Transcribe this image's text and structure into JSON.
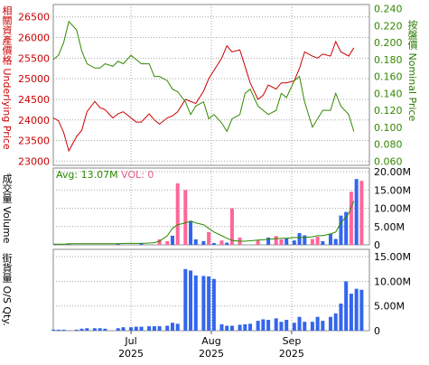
{
  "colors": {
    "price_line": "#cc0000",
    "nominal_line": "#338800",
    "volume_up": "#ff6699",
    "volume_down": "#3366ee",
    "avg_line": "#2a8a00",
    "os_bar": "#3366ee",
    "grid": "#a6a6a6"
  },
  "labels": {
    "underlying_axis": "相關資產價格 Underlying Price",
    "nominal_axis": "按盤價 Nominal Price",
    "volume_axis": "成交量 Volume",
    "os_axis": "街貨量 O/S Qty.",
    "avg_legend": "Avg: 13.07M",
    "vol_legend": "VOL: 0"
  },
  "chart_data": [
    {
      "type": "line",
      "title": "",
      "grid": true,
      "x": [
        "2025-06-01",
        "2025-06-03",
        "2025-06-05",
        "2025-06-07",
        "2025-06-10",
        "2025-06-12",
        "2025-06-14",
        "2025-06-17",
        "2025-06-19",
        "2025-06-21",
        "2025-06-24",
        "2025-06-26",
        "2025-06-28",
        "2025-07-01",
        "2025-07-03",
        "2025-07-05",
        "2025-07-08",
        "2025-07-10",
        "2025-07-12",
        "2025-07-15",
        "2025-07-17",
        "2025-07-19",
        "2025-07-22",
        "2025-07-24",
        "2025-07-26",
        "2025-07-29",
        "2025-07-31",
        "2025-08-02",
        "2025-08-05",
        "2025-08-07",
        "2025-08-09",
        "2025-08-12",
        "2025-08-14",
        "2025-08-16",
        "2025-08-19",
        "2025-08-21",
        "2025-08-23",
        "2025-08-26",
        "2025-08-28",
        "2025-08-30",
        "2025-09-02",
        "2025-09-04",
        "2025-09-06",
        "2025-09-09",
        "2025-09-11",
        "2025-09-13",
        "2025-09-16",
        "2025-09-18",
        "2025-09-20",
        "2025-09-23",
        "2025-09-25"
      ],
      "x_tick_labels": [
        {
          "month": "Jul",
          "year": "2025",
          "date": "2025-07-01"
        },
        {
          "month": "Aug",
          "year": "2025",
          "date": "2025-08-01"
        },
        {
          "month": "Sep",
          "year": "2025",
          "date": "2025-09-01"
        }
      ],
      "series": [
        {
          "name": "相關資產價格 Underlying Price",
          "axis": "left",
          "values": [
            24050,
            23980,
            23700,
            23250,
            23600,
            23750,
            24200,
            24450,
            24300,
            24250,
            24050,
            24150,
            24200,
            24050,
            23950,
            23950,
            24150,
            24000,
            23900,
            24050,
            24100,
            24200,
            24500,
            24450,
            24400,
            24700,
            25000,
            25200,
            25500,
            25800,
            25650,
            25700,
            25300,
            24900,
            24500,
            24600,
            24850,
            24750,
            24900,
            24900,
            24950,
            25250,
            25650,
            25550,
            25500,
            25600,
            25550,
            25900,
            25650,
            25550,
            25750
          ]
        },
        {
          "name": "按盤價 Nominal Price",
          "axis": "right",
          "values": [
            0.18,
            0.185,
            0.2,
            0.225,
            0.215,
            0.19,
            0.175,
            0.17,
            0.17,
            0.175,
            0.172,
            0.178,
            0.175,
            0.185,
            0.18,
            0.175,
            0.175,
            0.16,
            0.16,
            0.155,
            0.145,
            0.142,
            0.13,
            0.115,
            0.125,
            0.13,
            0.11,
            0.115,
            0.105,
            0.095,
            0.11,
            0.115,
            0.14,
            0.145,
            0.125,
            0.12,
            0.115,
            0.12,
            0.14,
            0.135,
            0.155,
            0.16,
            0.13,
            0.1,
            0.11,
            0.12,
            0.12,
            0.14,
            0.125,
            0.115,
            0.095
          ]
        }
      ],
      "y_left": {
        "ticks": [
          23000,
          23500,
          24000,
          24500,
          25000,
          25500,
          26000,
          26500
        ],
        "range": [
          22900,
          26800
        ]
      },
      "y_right": {
        "ticks": [
          "0.060",
          "0.080",
          "0.100",
          "0.120",
          "0.140",
          "0.160",
          "0.180",
          "0.200",
          "0.220",
          "0.240"
        ],
        "range": [
          0.055,
          0.245
        ]
      }
    },
    {
      "type": "bar",
      "title": "",
      "series": [
        {
          "color_role": "up",
          "values": [
            0.1,
            0.1,
            0.1,
            0.1,
            0.1,
            0.1,
            0.1,
            0.1,
            0.1,
            0.1,
            0.1,
            0.1,
            0.1,
            0.1,
            0.1,
            0.1,
            0.1,
            0.1,
            0.1,
            0.1,
            0.1,
            0.1,
            0.1,
            0.3,
            0.1,
            0.1,
            0.1,
            0.1,
            0.1,
            0.1,
            0.1,
            0.1,
            0.1,
            0.1,
            0.1,
            0.1,
            0.1,
            0.1,
            0.1,
            0.1,
            0.1,
            0.1,
            0.1,
            0.1,
            0.1,
            0.1,
            0.1,
            0.1,
            0.1,
            0.1,
            0.1
          ]
        },
        {
          "color_role": "down",
          "values": [
            0.1,
            0.1,
            0.1,
            0.1,
            0.1,
            0.1,
            0.1,
            0.1,
            0.1,
            0.1,
            0.1,
            0.1,
            0.1,
            0.1,
            0.1,
            0.1,
            0.1,
            0.1,
            0.1,
            0.1,
            0.1,
            0.1,
            0.1,
            0.1,
            0.1,
            0.1,
            0.1,
            0.1,
            0.1,
            0.1,
            0.1,
            0.1,
            0.1,
            0.1,
            0.1,
            0.1,
            0.1,
            0.1,
            0.1,
            0.1,
            0.1,
            0.1,
            0.1,
            0.1,
            0.1,
            0.1,
            0.1,
            0.1,
            0.1,
            0.1,
            0.1
          ]
        }
      ],
      "bars": [
        {
          "x": "2025-06-07",
          "v": 0.2,
          "c": "down"
        },
        {
          "x": "2025-06-26",
          "v": 0.3,
          "c": "down"
        },
        {
          "x": "2025-07-05",
          "v": 0.4,
          "c": "down"
        },
        {
          "x": "2025-07-12",
          "v": 1.5,
          "c": "up"
        },
        {
          "x": "2025-07-15",
          "v": 1.0,
          "c": "up"
        },
        {
          "x": "2025-07-17",
          "v": 2.5,
          "c": "down"
        },
        {
          "x": "2025-07-19",
          "v": 16.8,
          "c": "up"
        },
        {
          "x": "2025-07-22",
          "v": 15.0,
          "c": "up"
        },
        {
          "x": "2025-07-24",
          "v": 6.5,
          "c": "down"
        },
        {
          "x": "2025-07-26",
          "v": 1.5,
          "c": "down"
        },
        {
          "x": "2025-07-29",
          "v": 1.0,
          "c": "down"
        },
        {
          "x": "2025-07-31",
          "v": 3.5,
          "c": "up"
        },
        {
          "x": "2025-08-02",
          "v": 0.5,
          "c": "down"
        },
        {
          "x": "2025-08-05",
          "v": 1.2,
          "c": "up"
        },
        {
          "x": "2025-08-07",
          "v": 0.6,
          "c": "down"
        },
        {
          "x": "2025-08-09",
          "v": 10.0,
          "c": "up"
        },
        {
          "x": "2025-08-12",
          "v": 2.0,
          "c": "up"
        },
        {
          "x": "2025-08-19",
          "v": 1.2,
          "c": "up"
        },
        {
          "x": "2025-08-23",
          "v": 2.0,
          "c": "down"
        },
        {
          "x": "2025-08-26",
          "v": 2.4,
          "c": "up"
        },
        {
          "x": "2025-08-28",
          "v": 1.5,
          "c": "up"
        },
        {
          "x": "2025-08-30",
          "v": 1.8,
          "c": "down"
        },
        {
          "x": "2025-09-02",
          "v": 1.2,
          "c": "down"
        },
        {
          "x": "2025-09-04",
          "v": 3.2,
          "c": "down"
        },
        {
          "x": "2025-09-06",
          "v": 2.6,
          "c": "down"
        },
        {
          "x": "2025-09-09",
          "v": 1.6,
          "c": "up"
        },
        {
          "x": "2025-09-11",
          "v": 2.2,
          "c": "up"
        },
        {
          "x": "2025-09-13",
          "v": 1.0,
          "c": "down"
        },
        {
          "x": "2025-09-16",
          "v": 3.0,
          "c": "down"
        },
        {
          "x": "2025-09-18",
          "v": 1.6,
          "c": "down"
        },
        {
          "x": "2025-09-20",
          "v": 8.0,
          "c": "down"
        },
        {
          "x": "2025-09-22",
          "v": 9.0,
          "c": "down"
        },
        {
          "x": "2025-09-24",
          "v": 14.5,
          "c": "up"
        },
        {
          "x": "2025-09-26",
          "v": 18.0,
          "c": "down"
        },
        {
          "x": "2025-09-28",
          "v": 17.5,
          "c": "up"
        }
      ],
      "avg_line": [
        0.2,
        0.2,
        0.2,
        0.3,
        0.3,
        0.3,
        0.3,
        0.3,
        0.3,
        0.3,
        0.3,
        0.3,
        0.4,
        0.4,
        0.4,
        0.4,
        0.5,
        0.6,
        1.0,
        2.5,
        4.5,
        5.5,
        6.0,
        6.5,
        6.0,
        5.5,
        4.5,
        3.5,
        2.5,
        1.8,
        1.2,
        1.0,
        1.0,
        1.1,
        1.3,
        1.4,
        1.5,
        1.7,
        1.8,
        1.8,
        2.0,
        2.0,
        2.0,
        2.2,
        2.5,
        2.5,
        3.0,
        3.5,
        6.0,
        8.5,
        12.0
      ],
      "y": {
        "ticks": [
          "0",
          "5.00M",
          "10.00M",
          "15.00M",
          "20.00M"
        ],
        "range": [
          0,
          21
        ]
      }
    },
    {
      "type": "bar",
      "title": "",
      "bars": [
        {
          "x": "2025-06-01",
          "v": 0.2
        },
        {
          "x": "2025-06-03",
          "v": 0.2
        },
        {
          "x": "2025-06-05",
          "v": 0.2
        },
        {
          "x": "2025-06-10",
          "v": 0.2
        },
        {
          "x": "2025-06-12",
          "v": 0.4
        },
        {
          "x": "2025-06-14",
          "v": 0.5
        },
        {
          "x": "2025-06-17",
          "v": 0.5
        },
        {
          "x": "2025-06-19",
          "v": 0.5
        },
        {
          "x": "2025-06-21",
          "v": 0.4
        },
        {
          "x": "2025-06-26",
          "v": 0.5
        },
        {
          "x": "2025-06-28",
          "v": 0.7
        },
        {
          "x": "2025-07-01",
          "v": 0.7
        },
        {
          "x": "2025-07-03",
          "v": 0.8
        },
        {
          "x": "2025-07-05",
          "v": 0.8
        },
        {
          "x": "2025-07-08",
          "v": 0.9
        },
        {
          "x": "2025-07-10",
          "v": 0.9
        },
        {
          "x": "2025-07-12",
          "v": 0.9
        },
        {
          "x": "2025-07-15",
          "v": 1.0
        },
        {
          "x": "2025-07-17",
          "v": 1.6
        },
        {
          "x": "2025-07-19",
          "v": 1.4
        },
        {
          "x": "2025-07-22",
          "v": 12.5
        },
        {
          "x": "2025-07-24",
          "v": 12.2
        },
        {
          "x": "2025-07-26",
          "v": 11.2
        },
        {
          "x": "2025-07-29",
          "v": 11.1
        },
        {
          "x": "2025-07-31",
          "v": 11.0
        },
        {
          "x": "2025-08-02",
          "v": 10.5
        },
        {
          "x": "2025-08-05",
          "v": 1.3
        },
        {
          "x": "2025-08-07",
          "v": 1.0
        },
        {
          "x": "2025-08-09",
          "v": 1.0
        },
        {
          "x": "2025-08-12",
          "v": 1.2
        },
        {
          "x": "2025-08-14",
          "v": 1.3
        },
        {
          "x": "2025-08-16",
          "v": 1.4
        },
        {
          "x": "2025-08-19",
          "v": 2.0
        },
        {
          "x": "2025-08-21",
          "v": 2.3
        },
        {
          "x": "2025-08-23",
          "v": 2.2
        },
        {
          "x": "2025-08-26",
          "v": 2.5
        },
        {
          "x": "2025-08-28",
          "v": 1.8
        },
        {
          "x": "2025-08-30",
          "v": 2.2
        },
        {
          "x": "2025-09-02",
          "v": 1.6
        },
        {
          "x": "2025-09-04",
          "v": 2.8
        },
        {
          "x": "2025-09-06",
          "v": 1.8
        },
        {
          "x": "2025-09-09",
          "v": 1.8
        },
        {
          "x": "2025-09-11",
          "v": 2.8
        },
        {
          "x": "2025-09-13",
          "v": 2.0
        },
        {
          "x": "2025-09-16",
          "v": 2.8
        },
        {
          "x": "2025-09-18",
          "v": 3.5
        },
        {
          "x": "2025-09-20",
          "v": 5.5
        },
        {
          "x": "2025-09-22",
          "v": 10.0
        },
        {
          "x": "2025-09-24",
          "v": 7.5
        },
        {
          "x": "2025-09-26",
          "v": 8.5
        },
        {
          "x": "2025-09-28",
          "v": 8.3
        }
      ],
      "y": {
        "ticks": [
          "0",
          "5.00M",
          "10.00M",
          "15.00M"
        ],
        "range": [
          0,
          16.5
        ]
      }
    }
  ]
}
